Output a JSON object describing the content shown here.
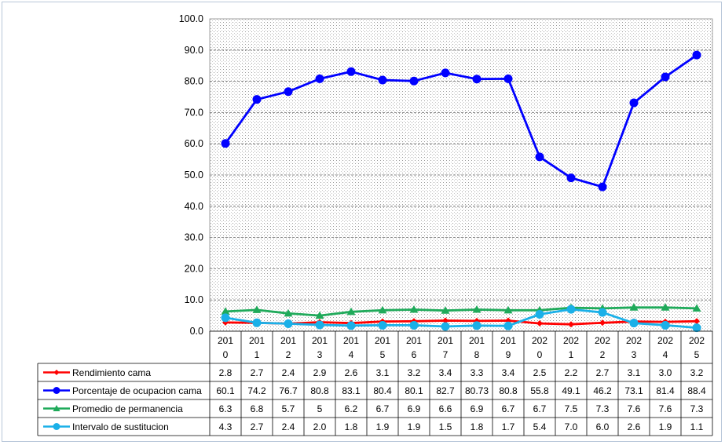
{
  "chart_data": {
    "type": "line",
    "ylim": [
      0,
      100
    ],
    "y_ticks": [
      "0.0",
      "10.0",
      "20.0",
      "30.0",
      "40.0",
      "50.0",
      "60.0",
      "70.0",
      "80.0",
      "90.0",
      "100.0"
    ],
    "y_tick_values": [
      0,
      10,
      20,
      30,
      40,
      50,
      60,
      70,
      80,
      90,
      100
    ],
    "categories": [
      "2010",
      "2011",
      "2012",
      "2013",
      "2014",
      "2015",
      "2016",
      "2017",
      "2018",
      "2019",
      "2020",
      "2021",
      "2022",
      "2023",
      "2024",
      "2025"
    ],
    "grid": true,
    "legend_placement": "data-table-left",
    "series": [
      {
        "name": "Rendimiento cama",
        "color": "#ff0000",
        "marker": "diamond",
        "values": [
          2.8,
          2.7,
          2.4,
          2.9,
          2.6,
          3.1,
          3.2,
          3.4,
          3.3,
          3.4,
          2.5,
          2.2,
          2.7,
          3.1,
          3.0,
          3.2
        ],
        "labels": [
          "2.8",
          "2.7",
          "2.4",
          "2.9",
          "2.6",
          "3.1",
          "3.2",
          "3.4",
          "3.3",
          "3.4",
          "2.5",
          "2.2",
          "2.7",
          "3.1",
          "3.0",
          "3.2"
        ]
      },
      {
        "name": "Porcentaje de ocupacion cama",
        "color": "#0000ff",
        "marker": "circle",
        "values": [
          60.1,
          74.2,
          76.7,
          80.8,
          83.1,
          80.4,
          80.1,
          82.7,
          80.73,
          80.8,
          55.8,
          49.1,
          46.2,
          73.1,
          81.4,
          88.4
        ],
        "labels": [
          "60.1",
          "74.2",
          "76.7",
          "80.8",
          "83.1",
          "80.4",
          "80.1",
          "82.7",
          "80.73",
          "80.8",
          "55.8",
          "49.1",
          "46.2",
          "73.1",
          "81.4",
          "88.4"
        ]
      },
      {
        "name": "Promedio de permanencia",
        "color": "#1faa5a",
        "marker": "triangle",
        "values": [
          6.3,
          6.8,
          5.7,
          5,
          6.2,
          6.7,
          6.9,
          6.6,
          6.9,
          6.7,
          6.7,
          7.5,
          7.3,
          7.6,
          7.6,
          7.3
        ],
        "labels": [
          "6.3",
          "6.8",
          "5.7",
          "5",
          "6.2",
          "6.7",
          "6.9",
          "6.6",
          "6.9",
          "6.7",
          "6.7",
          "7.5",
          "7.3",
          "7.6",
          "7.6",
          "7.3"
        ]
      },
      {
        "name": "Intervalo de sustitucion",
        "color": "#1ab0e8",
        "marker": "circle",
        "values": [
          4.3,
          2.7,
          2.4,
          2.0,
          1.8,
          1.9,
          1.9,
          1.5,
          1.8,
          1.7,
          5.4,
          7.0,
          6.0,
          2.6,
          1.9,
          1.1
        ],
        "labels": [
          "4.3",
          "2.7",
          "2.4",
          "2.0",
          "1.8",
          "1.9",
          "1.9",
          "1.5",
          "1.8",
          "1.7",
          "5.4",
          "7.0",
          "6.0",
          "2.6",
          "1.9",
          "1.1"
        ]
      }
    ]
  }
}
